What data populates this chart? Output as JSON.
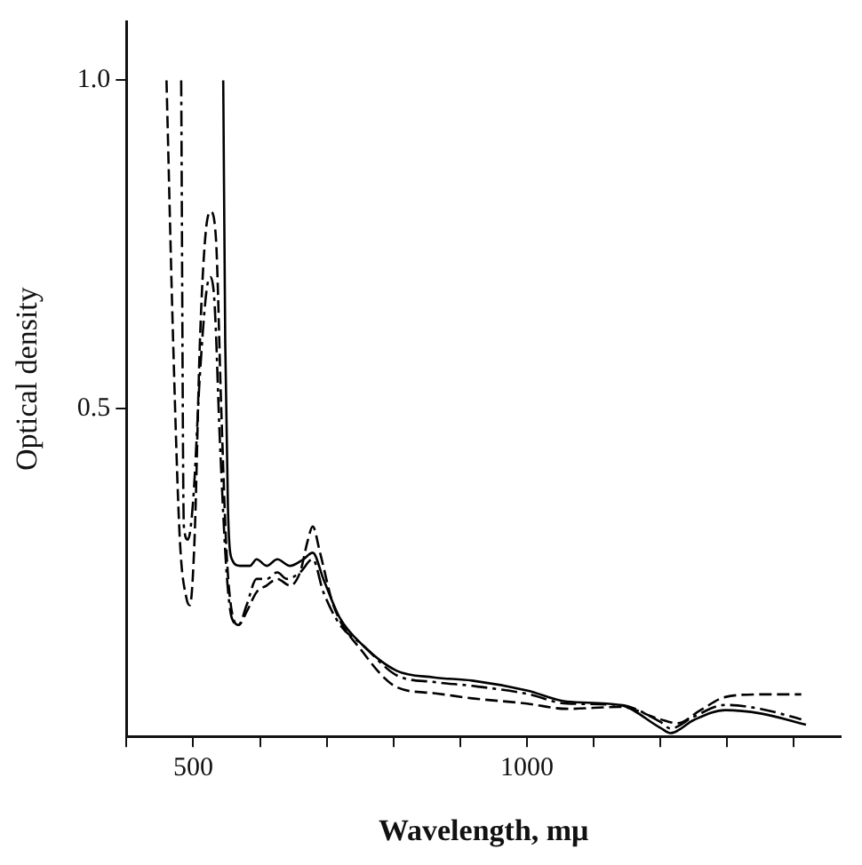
{
  "chart_data": {
    "type": "line",
    "xlabel": "Wavelength, mμ",
    "ylabel": "Optical density",
    "xlim": [
      400,
      1470
    ],
    "ylim": [
      0,
      1.09
    ],
    "xticks": [
      {
        "value": 400,
        "label": null
      },
      500,
      {
        "value": 600,
        "label": null
      },
      {
        "value": 700,
        "label": null
      },
      {
        "value": 800,
        "label": null
      },
      {
        "value": 900,
        "label": null
      },
      1000,
      {
        "value": 1100,
        "label": null
      },
      {
        "value": 1200,
        "label": null
      },
      {
        "value": 1300,
        "label": null
      },
      {
        "value": 1400,
        "label": null
      }
    ],
    "yticks": [
      {
        "value": 0.5,
        "label": "0.5"
      },
      {
        "value": 1.0,
        "label": "1.0"
      }
    ],
    "grid": false,
    "legend": false,
    "series": [
      {
        "color": "#000000",
        "line_style": "solid",
        "x": [
          545,
          548,
          552,
          558,
          570,
          585,
          595,
          610,
          626,
          645,
          665,
          679,
          695,
          720,
          753,
          805,
          860,
          918,
          1000,
          1060,
          1139,
          1200,
          1215,
          1250,
          1297,
          1350,
          1418
        ],
        "values": [
          1.0,
          0.6,
          0.35,
          0.27,
          0.26,
          0.26,
          0.27,
          0.26,
          0.27,
          0.26,
          0.27,
          0.28,
          0.24,
          0.18,
          0.14,
          0.1,
          0.09,
          0.085,
          0.07,
          0.053,
          0.048,
          0.013,
          0.005,
          0.025,
          0.04,
          0.035,
          0.018
        ]
      },
      {
        "color": "#000000",
        "line_style": "dashed",
        "x": [
          460,
          470,
          480,
          490,
          495,
          502,
          510,
          518,
          526,
          534,
          542,
          550,
          560,
          568,
          580,
          595,
          610,
          626,
          645,
          660,
          672,
          679,
          690,
          710,
          753,
          805,
          860,
          918,
          1000,
          1060,
          1139,
          1200,
          1225,
          1260,
          1297,
          1350,
          1411
        ],
        "values": [
          1.0,
          0.6,
          0.3,
          0.21,
          0.2,
          0.3,
          0.6,
          0.76,
          0.8,
          0.76,
          0.5,
          0.28,
          0.18,
          0.17,
          0.19,
          0.22,
          0.23,
          0.24,
          0.23,
          0.25,
          0.3,
          0.32,
          0.28,
          0.2,
          0.13,
          0.075,
          0.066,
          0.058,
          0.05,
          0.042,
          0.045,
          0.026,
          0.02,
          0.04,
          0.06,
          0.064,
          0.064
        ]
      },
      {
        "color": "#000000",
        "line_style": "dashdot",
        "x": [
          482,
          486,
          492,
          500,
          510,
          520,
          526,
          532,
          540,
          550,
          558,
          568,
          580,
          595,
          610,
          626,
          640,
          660,
          679,
          695,
          720,
          753,
          805,
          860,
          918,
          1000,
          1060,
          1139,
          1200,
          1215,
          1250,
          1297,
          1350,
          1411
        ],
        "values": [
          1.0,
          0.32,
          0.3,
          0.36,
          0.55,
          0.68,
          0.7,
          0.66,
          0.45,
          0.25,
          0.18,
          0.17,
          0.2,
          0.24,
          0.24,
          0.25,
          0.24,
          0.25,
          0.27,
          0.22,
          0.17,
          0.14,
          0.093,
          0.083,
          0.077,
          0.065,
          0.05,
          0.048,
          0.022,
          0.012,
          0.03,
          0.048,
          0.042,
          0.026
        ]
      }
    ]
  }
}
